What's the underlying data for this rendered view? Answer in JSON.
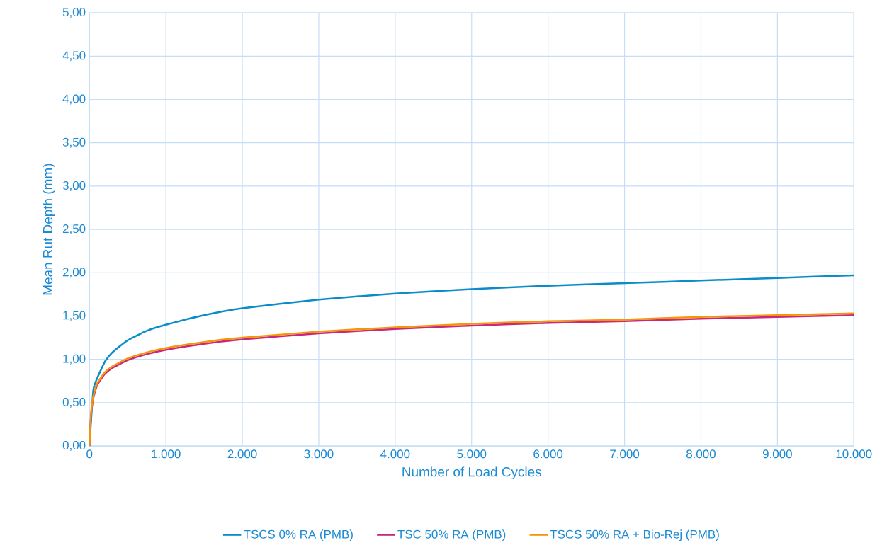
{
  "chart_data": {
    "type": "line",
    "xlabel": "Number of Load Cycles",
    "ylabel": "Mean Rut Depth (mm)",
    "x": [
      0,
      20,
      50,
      100,
      200,
      300,
      500,
      750,
      1000,
      1500,
      2000,
      3000,
      4000,
      5000,
      6000,
      7000,
      8000,
      9000,
      10000
    ],
    "series": [
      {
        "name": "TSCS 0% RA (PMB)",
        "color": "#0a8cc8",
        "values": [
          0,
          null,
          0.64,
          0.78,
          0.97,
          1.08,
          1.22,
          1.33,
          1.4,
          1.51,
          1.59,
          1.69,
          1.76,
          1.81,
          1.85,
          1.88,
          1.91,
          1.94,
          1.97
        ]
      },
      {
        "name": "TSC 50% RA (PMB)",
        "color": "#c8287f",
        "values": [
          0,
          0.35,
          0.55,
          0.7,
          0.83,
          0.9,
          0.99,
          1.06,
          1.11,
          1.18,
          1.23,
          1.3,
          1.35,
          1.39,
          1.42,
          1.44,
          1.47,
          1.49,
          1.51
        ]
      },
      {
        "name": "TSCS 50% RA + Bio-Rej (PMB)",
        "color": "#f5960a",
        "values": [
          0,
          0.36,
          0.57,
          0.72,
          0.85,
          0.92,
          1.01,
          1.08,
          1.13,
          1.2,
          1.25,
          1.32,
          1.37,
          1.41,
          1.44,
          1.46,
          1.49,
          1.51,
          1.53
        ]
      }
    ],
    "xlim": [
      0,
      10000
    ],
    "ylim": [
      0,
      5
    ],
    "xticks": [
      0,
      {
        "value": 1000,
        "label": "1.000"
      },
      {
        "value": 2000,
        "label": "2.000"
      },
      {
        "value": 3000,
        "label": "3.000"
      },
      {
        "value": 4000,
        "label": "4.000"
      },
      {
        "value": 5000,
        "label": "5.000"
      },
      {
        "value": 6000,
        "label": "6.000"
      },
      {
        "value": 7000,
        "label": "7.000"
      },
      {
        "value": 8000,
        "label": "8.000"
      },
      {
        "value": 9000,
        "label": "9.000"
      },
      {
        "value": 10000,
        "label": "10.000"
      }
    ],
    "yticks": [
      {
        "value": 0,
        "label": "0,00"
      },
      {
        "value": 0.5,
        "label": "0,50"
      },
      {
        "value": 1,
        "label": "1,00"
      },
      {
        "value": 1.5,
        "label": "1,50"
      },
      {
        "value": 2,
        "label": "2,00"
      },
      {
        "value": 2.5,
        "label": "2,50"
      },
      {
        "value": 3,
        "label": "3,00"
      },
      {
        "value": 3.5,
        "label": "3,50"
      },
      {
        "value": 4,
        "label": "4,00"
      },
      {
        "value": 4.5,
        "label": "4,50"
      },
      {
        "value": 5,
        "label": "5,00"
      }
    ],
    "grid": true,
    "legend": "bottom",
    "marker": "none",
    "line_style": "solid"
  }
}
